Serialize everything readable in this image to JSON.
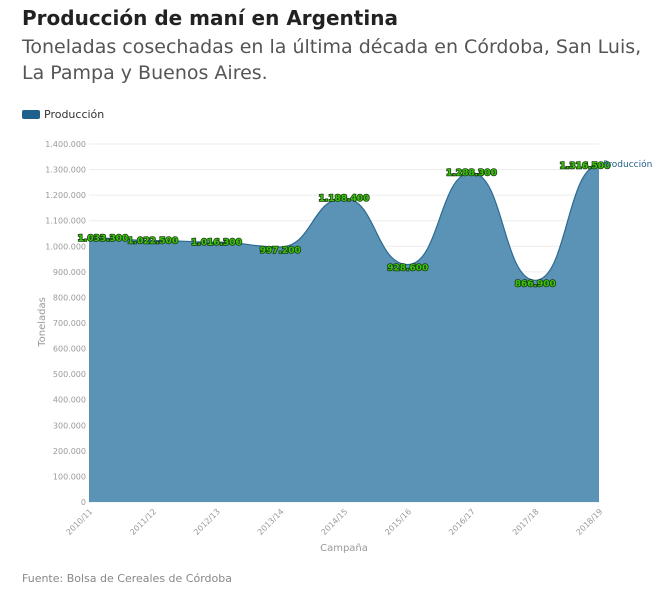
{
  "header": {
    "title": "Producción de maní en Argentina",
    "subtitle": "Toneladas cosechadas en la última década en Córdoba, San Luis, La Pampa y Buenos Aires."
  },
  "legend": {
    "label": "Producción"
  },
  "footer": {
    "source": "Fuente: Bolsa de Cereales de Córdoba"
  },
  "colors": {
    "area_fill": "#5a93b5",
    "area_line": "#2d6a91",
    "legend": "#1f5f8b",
    "data_label": "#39c60a"
  },
  "chart_data": {
    "type": "area",
    "xlabel": "Campaña",
    "ylabel": "Toneladas",
    "ylim": [
      0,
      1400000
    ],
    "y_ticks": [
      "0",
      "100.000",
      "200.000",
      "300.000",
      "400.000",
      "500.000",
      "600.000",
      "700.000",
      "800.000",
      "900.000",
      "1.000.000",
      "1.100.000",
      "1.200.000",
      "1.300.000",
      "1.400.000"
    ],
    "categories": [
      "2010/11",
      "2011/12",
      "2012/13",
      "2013/14",
      "2014/15",
      "2015/16",
      "2016/17",
      "2017/18",
      "2018/19"
    ],
    "series": [
      {
        "name": "Producción",
        "values": [
          1033300,
          1022500,
          1016300,
          997200,
          1188400,
          928600,
          1288300,
          866900,
          1316500
        ],
        "labels": [
          "1.033.300",
          "1.022.500",
          "1.016.300",
          "997.200",
          "1.188.400",
          "928.600",
          "1.288.300",
          "866.900",
          "1.316.500"
        ]
      }
    ],
    "grid": true,
    "legend_position": "top-left"
  }
}
